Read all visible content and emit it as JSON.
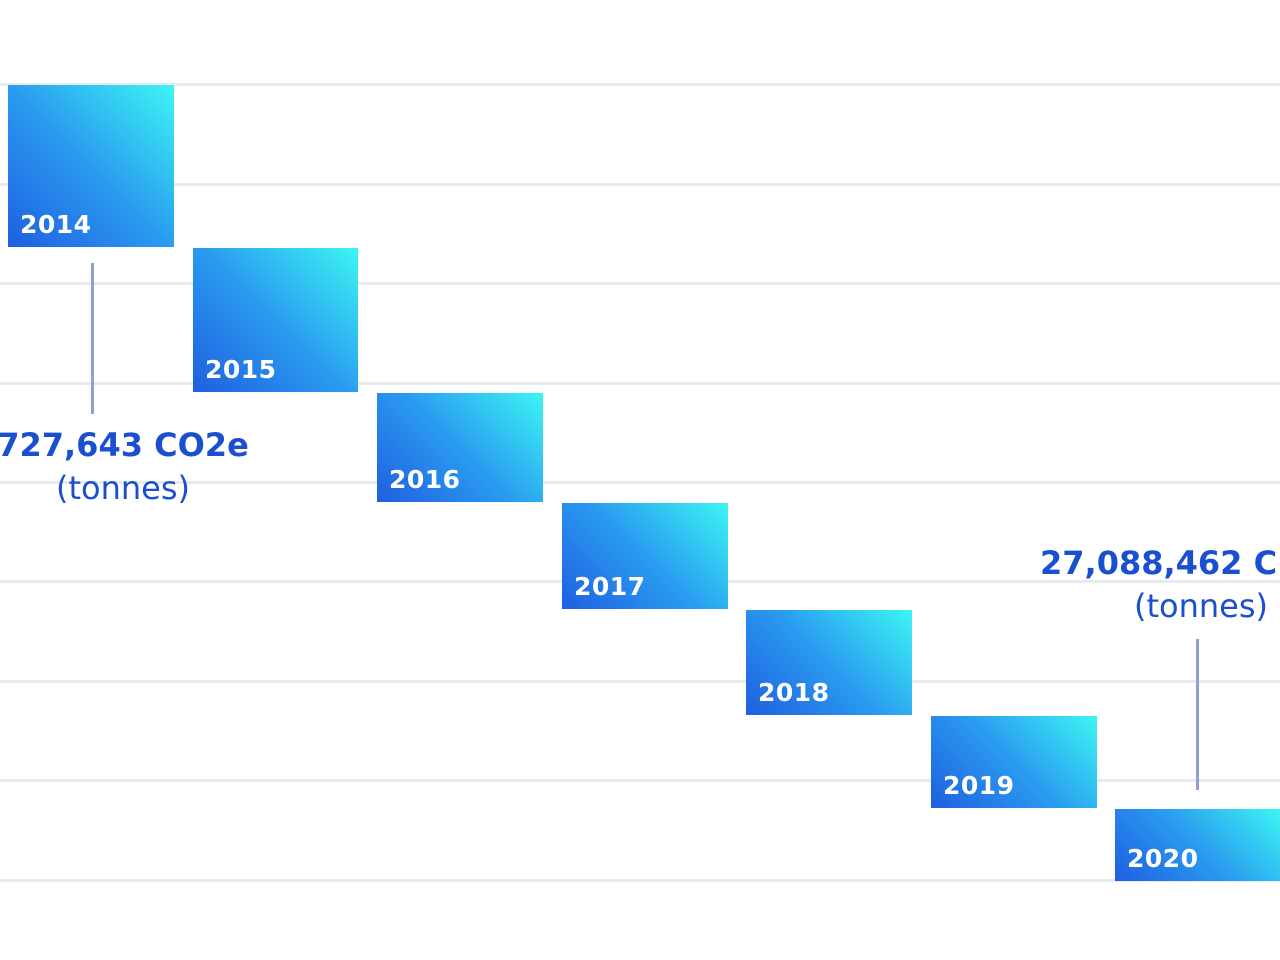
{
  "chart_data": {
    "type": "bar",
    "categories": [
      "2014",
      "2015",
      "2016",
      "2017",
      "2018",
      "2019",
      "2020"
    ],
    "ylim": [
      0,
      8
    ],
    "grid": true,
    "annotations": [
      {
        "category": "2014",
        "value_text": "727,643 CO2e",
        "unit_text": "(tonnes)"
      },
      {
        "category": "2020",
        "value_text": "27,088,462 C",
        "unit_text": "(tonnes)"
      }
    ]
  },
  "colors": {
    "bar_gradient_start": "#1f5fe0",
    "bar_gradient_end": "#3cf6f2",
    "accent_text": "#1a50d0",
    "leader_line": "#8ea0d6",
    "gridline": "#e8ebee"
  }
}
